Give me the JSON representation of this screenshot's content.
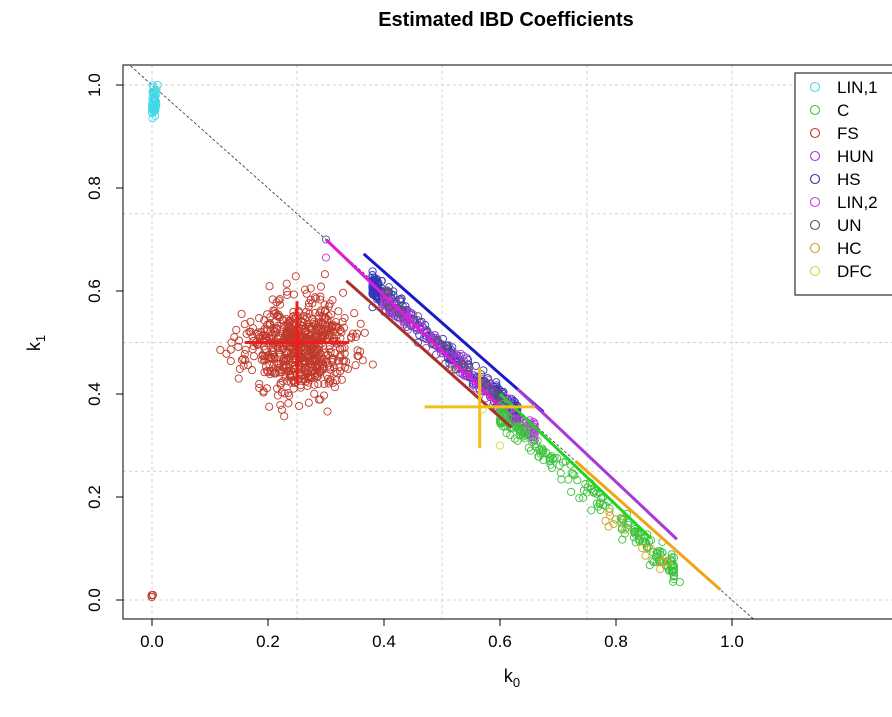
{
  "chart_data": {
    "type": "scatter",
    "title": "Estimated IBD Coefficients",
    "xlabel": {
      "base": "k",
      "sub": "0"
    },
    "ylabel": {
      "base": "k",
      "sub": "1"
    },
    "xlim": [
      -0.05,
      1.03
    ],
    "ylim": [
      -0.04,
      1.04
    ],
    "x_ticks": [
      "0.0",
      "0.2",
      "0.4",
      "0.6",
      "0.8",
      "1.0"
    ],
    "y_ticks": [
      "0.0",
      "0.2",
      "0.4",
      "0.6",
      "0.8",
      "1.0"
    ],
    "grid": true,
    "grid_lines": {
      "x": [
        0,
        0.25,
        0.5,
        0.75,
        1.0
      ],
      "y": [
        0,
        0.25,
        0.5,
        0.75,
        1.0
      ]
    },
    "reference_line": {
      "from": [
        -0.05,
        1.05
      ],
      "to": [
        1.05,
        -0.05
      ],
      "style": "dashed",
      "color": "#333333"
    },
    "legend": {
      "position": "top-right",
      "entries": [
        {
          "label": "LIN,1",
          "color": "#3fd8e6"
        },
        {
          "label": "C",
          "color": "#3ec23e"
        },
        {
          "label": "FS",
          "color": "#c0392b"
        },
        {
          "label": "HUN",
          "color": "#b23ad6"
        },
        {
          "label": "HS",
          "color": "#3434b8"
        },
        {
          "label": "LIN,2",
          "color": "#c24ad6"
        },
        {
          "label": "UN",
          "color": "#555577"
        },
        {
          "label": "HC",
          "color": "#d4a020"
        },
        {
          "label": "DFC",
          "color": "#d6d63a"
        }
      ]
    },
    "clusters": [
      {
        "name": "LIN,1",
        "color": "#3fd8e6",
        "cx": 0.003,
        "cy": 0.97,
        "sx": 0.003,
        "sy": 0.02,
        "n": 45,
        "seed": 11,
        "shape": "blob"
      },
      {
        "name": "FS",
        "color": "#c0392b",
        "cx": 0.25,
        "cy": 0.49,
        "sx": 0.045,
        "sy": 0.045,
        "n": 650,
        "seed": 23,
        "shape": "blob"
      },
      {
        "name": "FS-zero",
        "color": "#c0392b",
        "cx": 0.0,
        "cy": 0.005,
        "sx": 0.001,
        "sy": 0.004,
        "n": 4,
        "seed": 5,
        "shape": "blob"
      },
      {
        "name": "HS",
        "color": "#3434b8",
        "x0": 0.38,
        "x1": 0.63,
        "sum_mean": 0.99,
        "sum_sd": 0.012,
        "n": 330,
        "seed": 31,
        "shape": "diagonal"
      },
      {
        "name": "HUN",
        "color": "#b23ad6",
        "x0": 0.4,
        "x1": 0.66,
        "sum_mean": 0.985,
        "sum_sd": 0.01,
        "n": 180,
        "seed": 41,
        "shape": "diagonal"
      },
      {
        "name": "UN",
        "color": "#555577",
        "x0": 0.4,
        "x1": 0.6,
        "sum_mean": 0.99,
        "sum_sd": 0.012,
        "n": 60,
        "seed": 43,
        "shape": "diagonal"
      },
      {
        "name": "C",
        "color": "#3ec23e",
        "x0": 0.6,
        "x1": 0.9,
        "sum_mean": 0.96,
        "sum_sd": 0.012,
        "n": 210,
        "seed": 53,
        "shape": "diagonal"
      },
      {
        "name": "HC",
        "color": "#d4a020",
        "x0": 0.78,
        "x1": 0.88,
        "sum_mean": 0.95,
        "sum_sd": 0.012,
        "n": 12,
        "seed": 61,
        "shape": "diagonal"
      }
    ],
    "extra_points": [
      {
        "x": 0.3,
        "y": 0.7,
        "color": "#555577"
      },
      {
        "x": 0.3,
        "y": 0.665,
        "color": "#b23ad6"
      },
      {
        "x": 0.57,
        "y": 0.37,
        "color": "#d6d63a"
      },
      {
        "x": 0.6,
        "y": 0.3,
        "color": "#d6d63a"
      },
      {
        "x": 0.52,
        "y": 0.45,
        "color": "#d6d63a"
      },
      {
        "x": 0.91,
        "y": 0.035,
        "color": "#3ec23e"
      },
      {
        "x": 0.89,
        "y": 0.075,
        "color": "#d4a020"
      },
      {
        "x": 0.86,
        "y": 0.1,
        "color": "#d4a020"
      }
    ],
    "lines": [
      {
        "name": "LIN,2",
        "color": "#e01adc",
        "width": 3,
        "from": [
          0.3,
          0.7
        ],
        "to": [
          0.6,
          0.375
        ]
      },
      {
        "name": "HS",
        "color": "#1a1acc",
        "width": 3,
        "from": [
          0.365,
          0.672
        ],
        "to": [
          0.675,
          0.365
        ]
      },
      {
        "name": "FS",
        "color": "#a83228",
        "width": 3,
        "from": [
          0.335,
          0.62
        ],
        "to": [
          0.62,
          0.335
        ]
      },
      {
        "name": "HUN",
        "color": "#a83ad6",
        "width": 3,
        "from": [
          0.63,
          0.41
        ],
        "to": [
          0.905,
          0.118
        ]
      },
      {
        "name": "C",
        "color": "#22d422",
        "width": 3,
        "from": [
          0.6,
          0.4
        ],
        "to": [
          0.86,
          0.12
        ]
      },
      {
        "name": "HC",
        "color": "#f0a418",
        "width": 3,
        "from": [
          0.73,
          0.27
        ],
        "to": [
          0.98,
          0.02
        ]
      }
    ],
    "crosses": [
      {
        "name": "FS",
        "color": "#ee1c1c",
        "center": [
          0.25,
          0.5
        ],
        "hx": [
          0.16,
          0.34
        ],
        "vy": [
          0.42,
          0.58
        ],
        "width": 3
      },
      {
        "name": "DFC",
        "color": "#f0c018",
        "center": [
          0.565,
          0.375
        ],
        "hx": [
          0.47,
          0.66
        ],
        "vy": [
          0.295,
          0.45
        ],
        "width": 3
      }
    ]
  }
}
